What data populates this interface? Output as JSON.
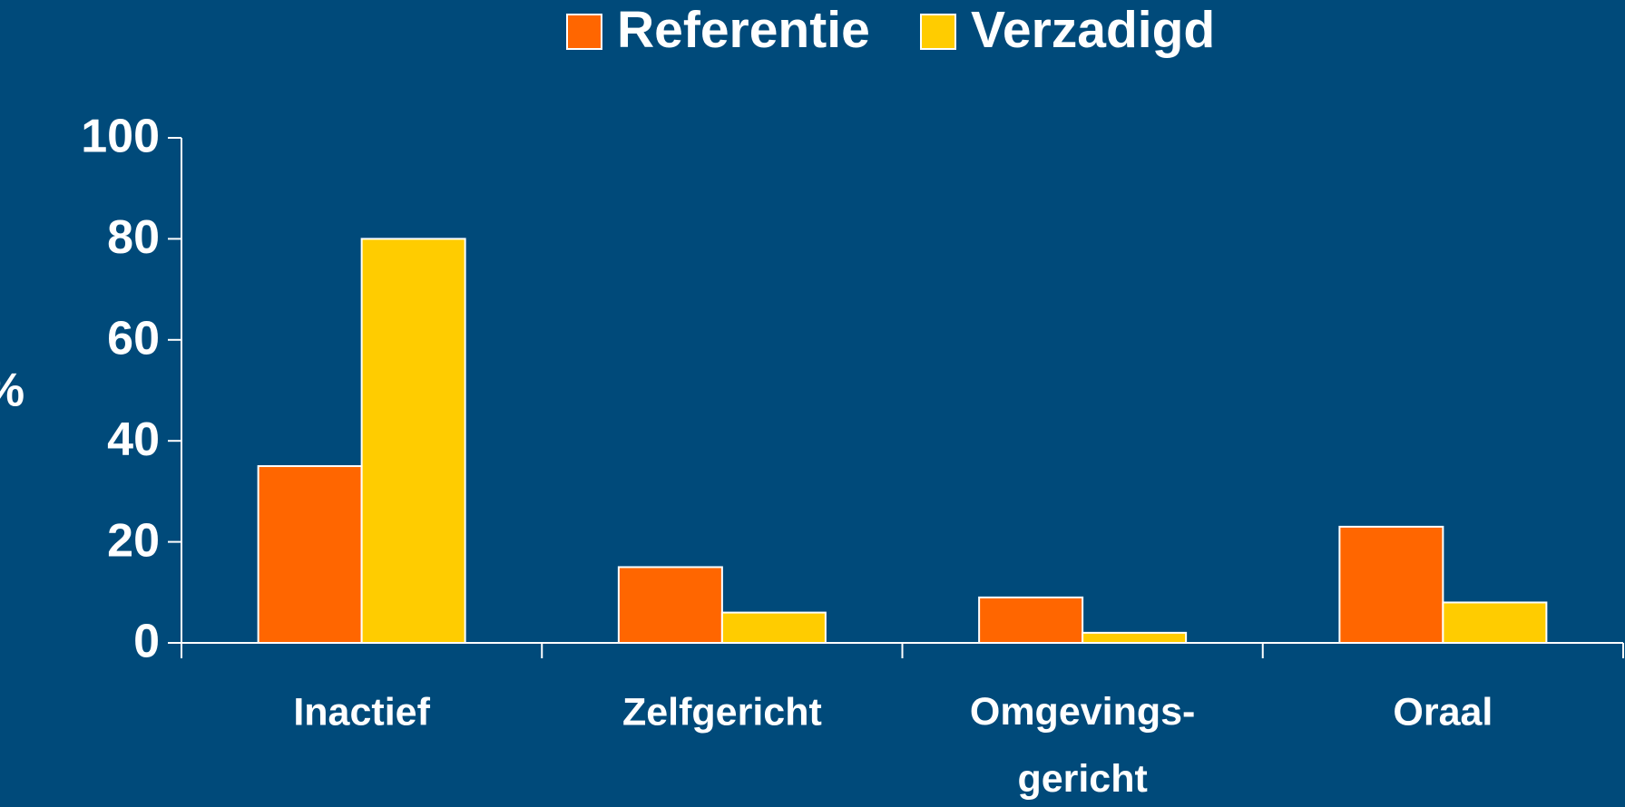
{
  "chart_data": {
    "type": "bar",
    "y_label": "%",
    "categories": [
      "Inactief",
      "Zelfgericht",
      "Omgevings-\ngericht",
      "Oraal"
    ],
    "series": [
      {
        "name": "Referentie",
        "color": "#ff6600",
        "values": [
          35,
          15,
          9,
          23
        ]
      },
      {
        "name": "Verzadigd",
        "color": "#ffcc00",
        "values": [
          80,
          6,
          2,
          8
        ]
      }
    ],
    "ylim": [
      0,
      100
    ],
    "yticks": [
      0,
      20,
      40,
      60,
      80,
      100
    ],
    "grid": false,
    "legend": "top"
  }
}
